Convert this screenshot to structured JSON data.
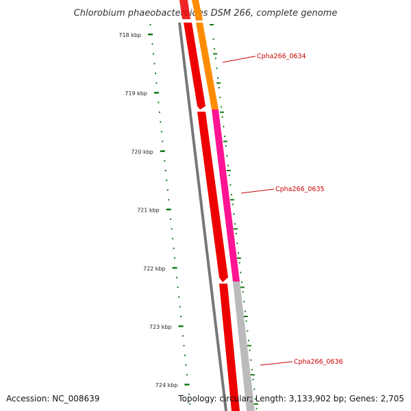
{
  "title": "Chlorobium phaeobacteroides DSM 266, complete genome",
  "footer": {
    "accession": "Accession: NC_008639",
    "topology": "Topology: circular; Length: 3,133,902 bp; Genes: 2,705"
  },
  "colors": {
    "backbone": "#777777",
    "cds": "#ee0000",
    "tick": "#117711",
    "label": "#cc0000",
    "gene_0634": "#ff8c00",
    "gene_0635": "#ff1493",
    "gene_0636": "#bbbbbb"
  },
  "ticks": [
    "718 kbp",
    "719 kbp",
    "720 kbp",
    "721 kbp",
    "722 kbp",
    "723 kbp",
    "724 kbp"
  ],
  "genes": [
    {
      "id": "Cpha266_0634",
      "color": "#ff8c00"
    },
    {
      "id": "Cpha266_0635",
      "color": "#ff1493"
    },
    {
      "id": "Cpha266_0636",
      "color": "#bbbbbb"
    }
  ]
}
